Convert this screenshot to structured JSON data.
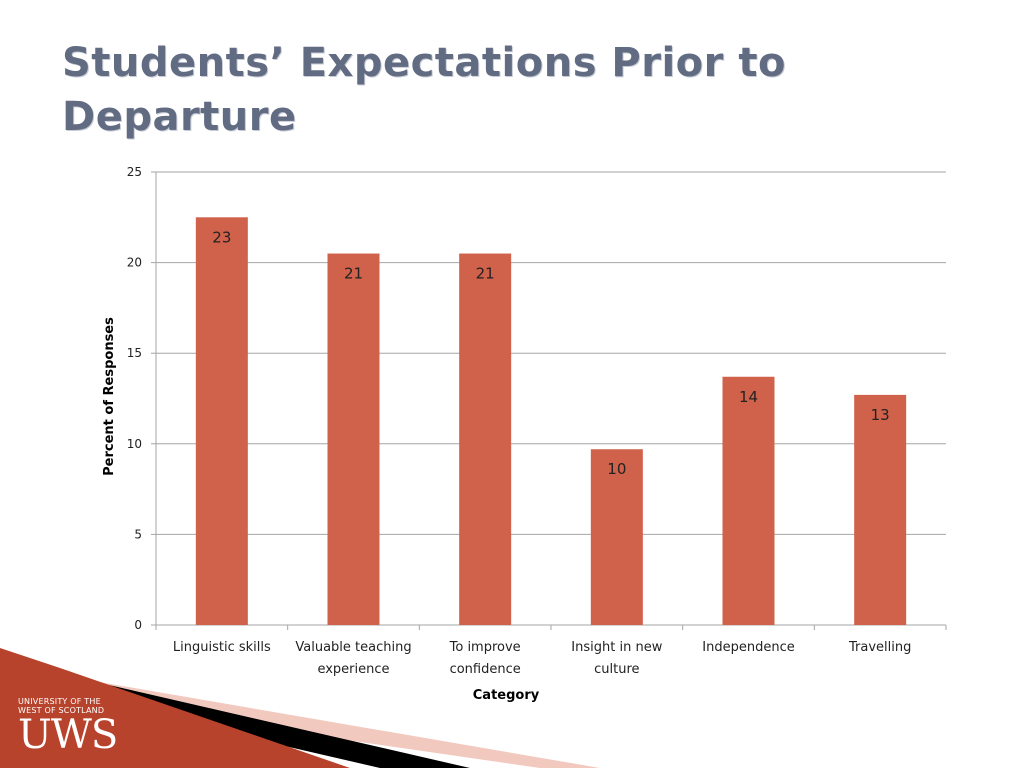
{
  "slide": {
    "title": "Students’ Expectations Prior to Departure"
  },
  "colors": {
    "bar": "#d0614a",
    "title": "#616b82",
    "gridline": "#a6a6a6",
    "decor_red": "#b8432c",
    "decor_black": "#000000",
    "decor_pink": "#f2c9bf"
  },
  "chart_data": {
    "type": "bar",
    "categories": [
      [
        "Linguistic skills"
      ],
      [
        "Valuable teaching",
        "experience"
      ],
      [
        "To improve",
        "confidence"
      ],
      [
        "Insight in new",
        "culture"
      ],
      [
        "Independence"
      ],
      [
        "Travelling"
      ]
    ],
    "values": [
      22.5,
      20.5,
      20.5,
      9.7,
      13.7,
      12.7
    ],
    "data_labels": [
      "23",
      "21",
      "21",
      "10",
      "14",
      "13"
    ],
    "xlabel": "Category",
    "ylabel": "Percent of Responses",
    "ylim": [
      0,
      25
    ],
    "yticks": [
      0,
      5,
      10,
      15,
      20,
      25
    ],
    "grid": true,
    "legend": "none"
  },
  "logo": {
    "line1": "University of the",
    "line2": "West of Scotland",
    "mark": "UWS"
  }
}
